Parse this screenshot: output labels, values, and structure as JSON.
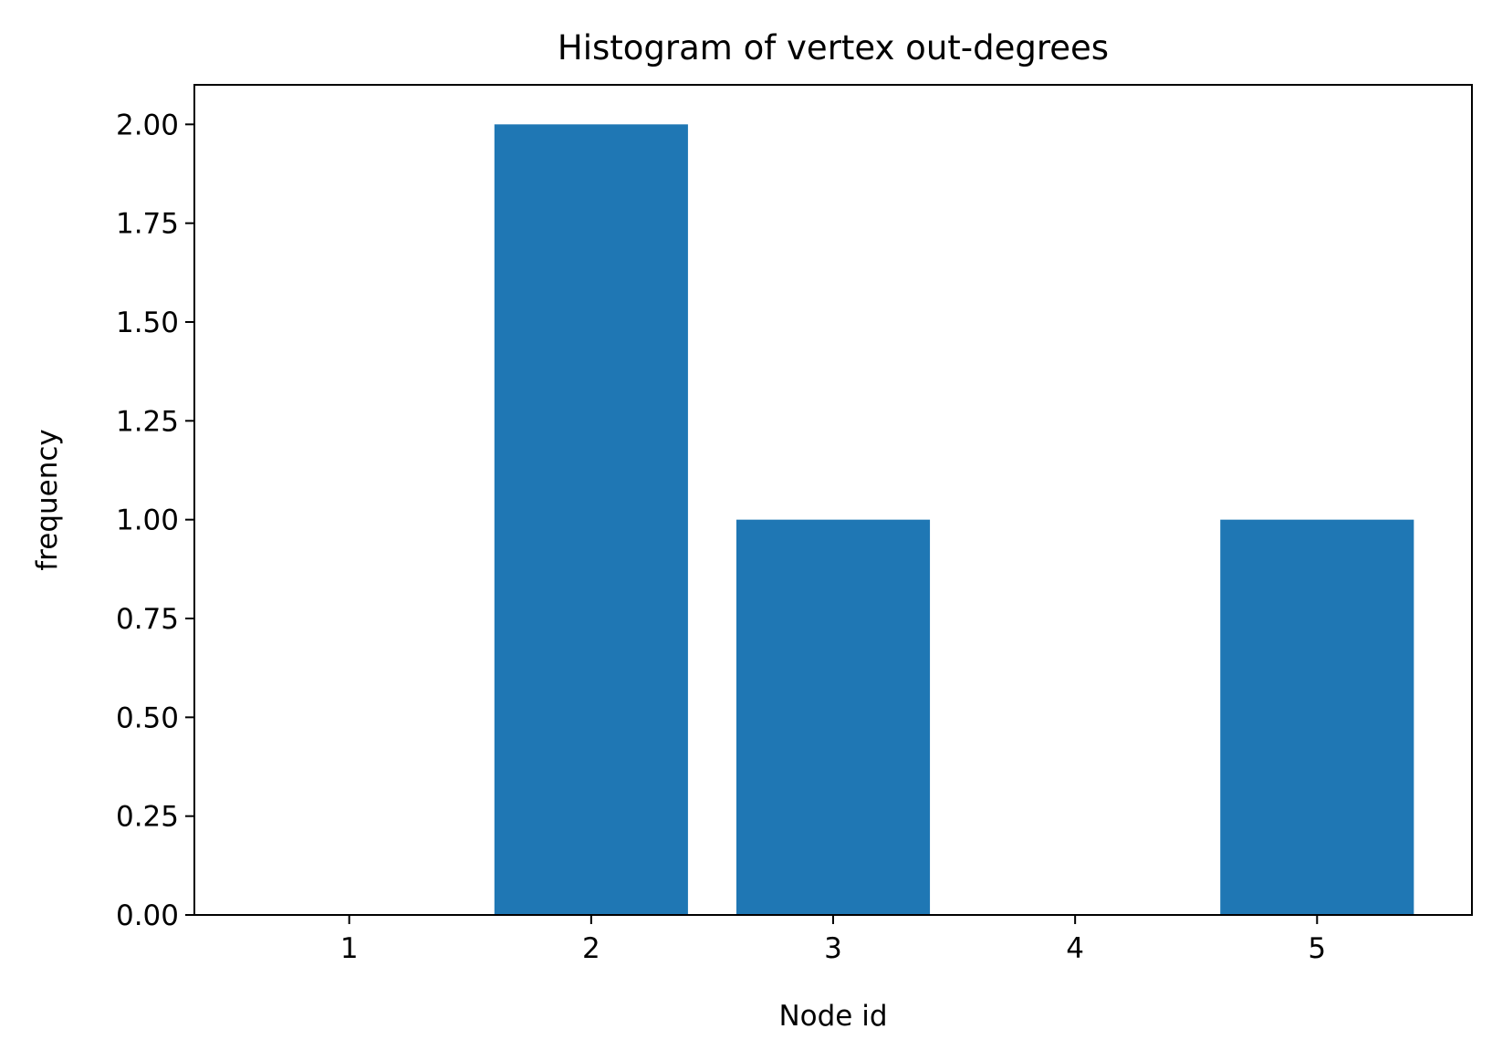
{
  "chart_data": {
    "type": "bar",
    "title": "Histogram of vertex out-degrees",
    "xlabel": "Node id",
    "ylabel": "frequency",
    "categories": [
      "1",
      "2",
      "3",
      "4",
      "5"
    ],
    "x": [
      1,
      2,
      3,
      4,
      5
    ],
    "values": [
      0,
      2,
      1,
      0,
      1
    ],
    "bar_width": 0.8,
    "xlim": [
      0.36,
      5.64
    ],
    "ylim": [
      0,
      2.1
    ],
    "yticks": [
      0,
      0.25,
      0.5,
      0.75,
      1.0,
      1.25,
      1.5,
      1.75,
      2.0
    ],
    "ytick_labels": [
      "0.00",
      "0.25",
      "0.50",
      "0.75",
      "1.00",
      "1.25",
      "1.50",
      "1.75",
      "2.00"
    ],
    "grid": false,
    "bar_color": "#1f77b4"
  }
}
